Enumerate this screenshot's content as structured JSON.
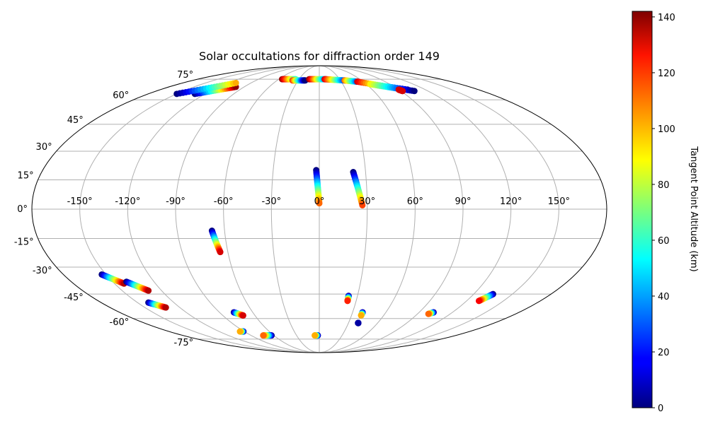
{
  "chart_data": {
    "type": "scatter",
    "projection": "mollweide",
    "title": "Solar occultations for diffraction order 149",
    "grid": true,
    "lon_ticks": [
      "-150°",
      "-120°",
      "-90°",
      "-60°",
      "-30°",
      "0°",
      "30°",
      "60°",
      "90°",
      "120°",
      "150°"
    ],
    "lat_ticks": [
      "75°",
      "60°",
      "45°",
      "30°",
      "15°",
      "0°",
      "-15°",
      "-30°",
      "-45°",
      "-60°",
      "-75°"
    ],
    "colorbar": {
      "label": "Tangent Point Altitude (km)",
      "colormap": "jet",
      "range": [
        0,
        142
      ],
      "ticks": [
        "0",
        "20",
        "40",
        "60",
        "80",
        "100",
        "120",
        "140"
      ]
    },
    "tracks": [
      {
        "lon_start": -2,
        "lat_start": 20,
        "alt_start": 0,
        "lon_end": 0,
        "lat_end": 3,
        "alt_end": 110
      },
      {
        "lon_start": 22,
        "lat_start": 19,
        "alt_start": 0,
        "lon_end": 27,
        "lat_end": 2,
        "alt_end": 115
      },
      {
        "lon_start": -68,
        "lat_start": -11,
        "alt_start": 0,
        "lon_end": -65,
        "lat_end": -22,
        "alt_end": 130
      },
      {
        "lon_start": -153,
        "lat_start": -34,
        "alt_start": 0,
        "lon_end": -143,
        "lat_end": -39,
        "alt_end": 135
      },
      {
        "lon_start": -140,
        "lat_start": -38,
        "alt_start": 0,
        "lon_end": -130,
        "lat_end": -43,
        "alt_end": 135
      },
      {
        "lon_start": -141,
        "lat_start": -50,
        "alt_start": 0,
        "lon_end": -132,
        "lat_end": -53,
        "alt_end": 135
      },
      {
        "lon_start": 23,
        "lat_start": -46,
        "alt_start": 0,
        "lon_end": 23,
        "lat_end": -49,
        "alt_end": 120
      },
      {
        "lon_start": 39,
        "lat_start": -56,
        "alt_start": 0,
        "lon_end": 39,
        "lat_end": -58,
        "alt_end": 100
      },
      {
        "lon_start": 135,
        "lat_start": -45,
        "alt_start": 0,
        "lon_end": 130,
        "lat_end": -49,
        "alt_end": 125
      },
      {
        "lon_start": 103,
        "lat_start": -56,
        "alt_start": 0,
        "lon_end": 100,
        "lat_end": -57,
        "alt_end": 110
      },
      {
        "lon_start": -77,
        "lat_start": -56,
        "alt_start": 0,
        "lon_end": -71,
        "lat_end": -58,
        "alt_end": 130
      },
      {
        "lon_start": 40,
        "lat_start": -63,
        "alt_start": 5,
        "lon_end": 40,
        "lat_end": -63,
        "alt_end": 5
      },
      {
        "lon_start": -91,
        "lat_start": -69,
        "alt_start": 0,
        "lon_end": -95,
        "lat_end": -69,
        "alt_end": 100
      },
      {
        "lon_start": -63,
        "lat_start": -72,
        "alt_start": 0,
        "lon_end": -74,
        "lat_end": -72,
        "alt_end": 110
      },
      {
        "lon_start": -2,
        "lat_start": -72,
        "alt_start": 0,
        "lon_end": -6,
        "lat_end": -72,
        "alt_end": 100
      },
      {
        "lon_start": -131,
        "lat_start": 64,
        "alt_start": 0,
        "lon_end": -100,
        "lat_end": 69,
        "alt_end": 140
      },
      {
        "lon_start": -150,
        "lat_start": 64,
        "alt_start": 0,
        "lon_end": -110,
        "lat_end": 72,
        "alt_end": 100
      },
      {
        "lon_start": -55,
        "lat_start": 75,
        "alt_start": 140,
        "lon_end": -35,
        "lat_end": 75,
        "alt_end": 60
      },
      {
        "lon_start": -38,
        "lat_start": 74,
        "alt_start": 120,
        "lon_end": -20,
        "lat_end": 74,
        "alt_end": 0
      },
      {
        "lon_start": -15,
        "lat_start": 75,
        "alt_start": 140,
        "lon_end": 10,
        "lat_end": 75,
        "alt_end": 30
      },
      {
        "lon_start": 8,
        "lat_start": 75,
        "alt_start": 130,
        "lon_end": 35,
        "lat_end": 74,
        "alt_end": 30
      },
      {
        "lon_start": 36,
        "lat_start": 74,
        "alt_start": 110,
        "lon_end": 52,
        "lat_end": 73,
        "alt_end": 30
      },
      {
        "lon_start": 52,
        "lat_start": 73,
        "alt_start": 130,
        "lon_end": 100,
        "lat_end": 67,
        "alt_end": 0
      },
      {
        "lon_start": 65,
        "lat_start": 71,
        "alt_start": 90,
        "lon_end": 105,
        "lat_end": 66,
        "alt_end": 0
      },
      {
        "lon_start": 90,
        "lat_start": 67,
        "alt_start": 130,
        "lon_end": 92,
        "lat_end": 66,
        "alt_end": 130
      }
    ]
  }
}
